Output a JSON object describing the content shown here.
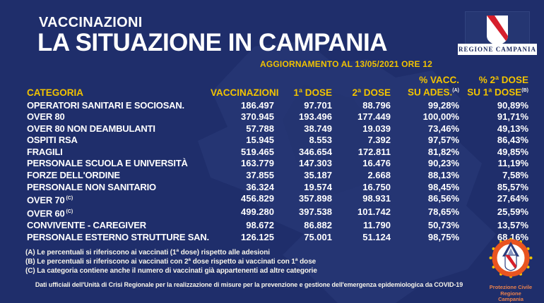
{
  "colors": {
    "background": "#1f2e6b",
    "accent_yellow": "#f2c300",
    "text_white": "#ffffff",
    "shield_red": "#d61f2c",
    "logo_navy": "#16255c",
    "protezione_orange": "#e95420"
  },
  "header": {
    "kicker": "VACCINAZIONI",
    "title": "LA SITUAZIONE IN CAMPANIA",
    "update": "AGGIORNAMENTO AL 13/05/2021 ORE 12"
  },
  "logos": {
    "region_label": "REGIONE CAMPANIA",
    "pc_line1": "Protezione Civile",
    "pc_line2": "Regione Campania"
  },
  "table": {
    "columns": {
      "categoria": "CATEGORIA",
      "vaccinazioni": "VACCINAZIONI",
      "dose1": "1ª DOSE",
      "dose2": "2ª DOSE",
      "pct_vacc_line1": "% VACC.",
      "pct_vacc_line2": "SU ADES.",
      "pct_vacc_sup": "(A)",
      "pct_dose2_line1": "% 2ª DOSE",
      "pct_dose2_line2": "SU 1ª DOSE",
      "pct_dose2_sup": "(B)"
    },
    "rows": [
      {
        "category": "OPERATORI SANITARI E SOCIOSAN.",
        "sup": "",
        "vaccinazioni": "186.497",
        "dose1": "97.701",
        "dose2": "88.796",
        "pct_vacc": "99,28%",
        "pct_dose2": "90,89%"
      },
      {
        "category": "OVER 80",
        "sup": "",
        "vaccinazioni": "370.945",
        "dose1": "193.496",
        "dose2": "177.449",
        "pct_vacc": "100,00%",
        "pct_dose2": "91,71%"
      },
      {
        "category": "OVER 80 NON DEAMBULANTI",
        "sup": "",
        "vaccinazioni": "57.788",
        "dose1": "38.749",
        "dose2": "19.039",
        "pct_vacc": "73,46%",
        "pct_dose2": "49,13%"
      },
      {
        "category": "OSPITI RSA",
        "sup": "",
        "vaccinazioni": "15.945",
        "dose1": "8.553",
        "dose2": "7.392",
        "pct_vacc": "97,57%",
        "pct_dose2": "86,43%"
      },
      {
        "category": "FRAGILI",
        "sup": "",
        "vaccinazioni": "519.465",
        "dose1": "346.654",
        "dose2": "172.811",
        "pct_vacc": "81,82%",
        "pct_dose2": "49,85%"
      },
      {
        "category": "PERSONALE SCUOLA E UNIVERSITÀ",
        "sup": "",
        "vaccinazioni": "163.779",
        "dose1": "147.303",
        "dose2": "16.476",
        "pct_vacc": "90,23%",
        "pct_dose2": "11,19%"
      },
      {
        "category": "FORZE DELL'ORDINE",
        "sup": "",
        "vaccinazioni": "37.855",
        "dose1": "35.187",
        "dose2": "2.668",
        "pct_vacc": "88,13%",
        "pct_dose2": "7,58%"
      },
      {
        "category": "PERSONALE NON SANITARIO",
        "sup": "",
        "vaccinazioni": "36.324",
        "dose1": "19.574",
        "dose2": "16.750",
        "pct_vacc": "98,45%",
        "pct_dose2": "85,57%"
      },
      {
        "category": "OVER 70",
        "sup": "(C)",
        "vaccinazioni": "456.829",
        "dose1": "357.898",
        "dose2": "98.931",
        "pct_vacc": "86,56%",
        "pct_dose2": "27,64%"
      },
      {
        "category": "OVER 60",
        "sup": "(C)",
        "vaccinazioni": "499.280",
        "dose1": "397.538",
        "dose2": "101.742",
        "pct_vacc": "78,65%",
        "pct_dose2": "25,59%"
      },
      {
        "category": "CONVIVENTE - CAREGIVER",
        "sup": "",
        "vaccinazioni": "98.672",
        "dose1": "86.882",
        "dose2": "11.790",
        "pct_vacc": "50,73%",
        "pct_dose2": "13,57%"
      },
      {
        "category": "PERSONALE ESTERNO STRUTTURE SAN.",
        "sup": "",
        "vaccinazioni": "126.125",
        "dose1": "75.001",
        "dose2": "51.124",
        "pct_vacc": "98,75%",
        "pct_dose2": "68,16%"
      }
    ]
  },
  "footnotes": [
    "(A) Le percentuali si riferiscono ai vaccinati (1ª dose) rispetto alle adesioni",
    "(B) Le percentuali si riferiscono ai vaccinati con 2ª dose rispetto ai vaccinati con 1ª dose",
    "(C) La categoria contiene anche il numero di vaccinati già appartenenti ad altre categorie"
  ],
  "footer": {
    "note": "Dati ufficiali dell'Unità di Crisi Regionale per la realizzazione di misure per la prevenzione e gestione dell'emergenza epidemiologica da COVID-19"
  },
  "chart_data": {
    "type": "table",
    "title": "VACCINAZIONI - LA SITUAZIONE IN CAMPANIA",
    "subtitle": "AGGIORNAMENTO AL 13/05/2021 ORE 12",
    "columns": [
      "CATEGORIA",
      "VACCINAZIONI",
      "1ª DOSE",
      "2ª DOSE",
      "% VACC. SU ADES. (A)",
      "% 2ª DOSE SU 1ª DOSE (B)"
    ],
    "rows": [
      [
        "OPERATORI SANITARI E SOCIOSAN.",
        "186.497",
        "97.701",
        "88.796",
        "99,28%",
        "90,89%"
      ],
      [
        "OVER 80",
        "370.945",
        "193.496",
        "177.449",
        "100,00%",
        "91,71%"
      ],
      [
        "OVER 80 NON DEAMBULANTI",
        "57.788",
        "38.749",
        "19.039",
        "73,46%",
        "49,13%"
      ],
      [
        "OSPITI RSA",
        "15.945",
        "8.553",
        "7.392",
        "97,57%",
        "86,43%"
      ],
      [
        "FRAGILI",
        "519.465",
        "346.654",
        "172.811",
        "81,82%",
        "49,85%"
      ],
      [
        "PERSONALE SCUOLA E UNIVERSITÀ",
        "163.779",
        "147.303",
        "16.476",
        "90,23%",
        "11,19%"
      ],
      [
        "FORZE DELL'ORDINE",
        "37.855",
        "35.187",
        "2.668",
        "88,13%",
        "7,58%"
      ],
      [
        "PERSONALE NON SANITARIO",
        "36.324",
        "19.574",
        "16.750",
        "98,45%",
        "85,57%"
      ],
      [
        "OVER 70 (C)",
        "456.829",
        "357.898",
        "98.931",
        "86,56%",
        "27,64%"
      ],
      [
        "OVER 60 (C)",
        "499.280",
        "397.538",
        "101.742",
        "78,65%",
        "25,59%"
      ],
      [
        "CONVIVENTE - CAREGIVER",
        "98.672",
        "86.882",
        "11.790",
        "50,73%",
        "13,57%"
      ],
      [
        "PERSONALE ESTERNO STRUTTURE SAN.",
        "126.125",
        "75.001",
        "51.124",
        "98,75%",
        "68,16%"
      ]
    ]
  }
}
